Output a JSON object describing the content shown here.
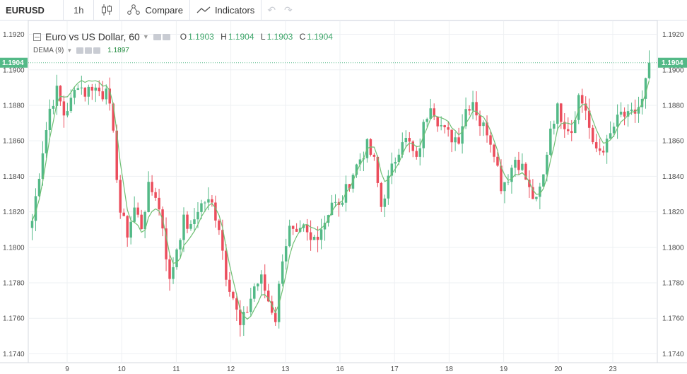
{
  "toolbar": {
    "symbol": "EURUSD",
    "interval": "1h",
    "compare_label": "Compare",
    "indicators_label": "Indicators",
    "undo_icon": "undo-icon",
    "redo_icon": "redo-icon"
  },
  "legend": {
    "title": "Euro vs US Dollar, 60",
    "o_key": "O",
    "o_val": "1.1903",
    "h_key": "H",
    "h_val": "1.1904",
    "l_key": "L",
    "l_val": "1.1903",
    "c_key": "C",
    "c_val": "1.1904",
    "dema_label": "DEMA (9)",
    "dema_value": "1.1897"
  },
  "colors": {
    "up": "#53b987",
    "down": "#eb4d5c",
    "dema_line": "#6fbf73",
    "price_tag": "#53b987",
    "grid": "#eef0f3",
    "axis_text": "#4a4a4a"
  },
  "chart_data": {
    "type": "candlestick",
    "symbol": "EURUSD",
    "interval": "60",
    "last_price": 1.1904,
    "last_price_label": "1.1904",
    "ylim": [
      1.1735,
      1.1925
    ],
    "y_ticks": [
      "1.1920",
      "1.1900",
      "1.1880",
      "1.1860",
      "1.1840",
      "1.1820",
      "1.1800",
      "1.1780",
      "1.1760",
      "1.1740"
    ],
    "x_ticks": [
      "9",
      "10",
      "11",
      "12",
      "13",
      "16",
      "17",
      "18",
      "19",
      "20",
      "23"
    ],
    "path": [
      [
        0,
        1.1815
      ],
      [
        3,
        1.1855
      ],
      [
        5,
        1.1878
      ],
      [
        7,
        1.1888
      ],
      [
        9,
        1.1875
      ],
      [
        11,
        1.1882
      ],
      [
        13,
        1.1893
      ],
      [
        15,
        1.1887
      ],
      [
        17,
        1.1891
      ],
      [
        19,
        1.1888
      ],
      [
        20,
        1.1886
      ],
      [
        21,
        1.1893
      ],
      [
        23,
        1.1862
      ],
      [
        25,
        1.182
      ],
      [
        27,
        1.1808
      ],
      [
        29,
        1.1822
      ],
      [
        31,
        1.1812
      ],
      [
        33,
        1.1833
      ],
      [
        35,
        1.183
      ],
      [
        37,
        1.1812
      ],
      [
        39,
        1.178
      ],
      [
        41,
        1.18
      ],
      [
        43,
        1.1815
      ],
      [
        45,
        1.181
      ],
      [
        47,
        1.1822
      ],
      [
        49,
        1.1826
      ],
      [
        51,
        1.1824
      ],
      [
        53,
        1.1812
      ],
      [
        55,
        1.1785
      ],
      [
        57,
        1.1772
      ],
      [
        59,
        1.1755
      ],
      [
        61,
        1.1765
      ],
      [
        63,
        1.1778
      ],
      [
        65,
        1.1782
      ],
      [
        67,
        1.177
      ],
      [
        69,
        1.176
      ],
      [
        71,
        1.1795
      ],
      [
        73,
        1.181
      ],
      [
        75,
        1.1805
      ],
      [
        77,
        1.181
      ],
      [
        79,
        1.1803
      ],
      [
        81,
        1.1808
      ],
      [
        83,
        1.1815
      ],
      [
        85,
        1.1826
      ],
      [
        87,
        1.1822
      ],
      [
        89,
        1.1832
      ],
      [
        91,
        1.1842
      ],
      [
        93,
        1.185
      ],
      [
        95,
        1.1857
      ],
      [
        97,
        1.1848
      ],
      [
        99,
        1.1823
      ],
      [
        101,
        1.1838
      ],
      [
        103,
        1.185
      ],
      [
        105,
        1.1862
      ],
      [
        107,
        1.1858
      ],
      [
        109,
        1.1848
      ],
      [
        111,
        1.1868
      ],
      [
        113,
        1.1882
      ],
      [
        115,
        1.1872
      ],
      [
        117,
        1.1865
      ],
      [
        119,
        1.1862
      ],
      [
        121,
        1.1862
      ],
      [
        123,
        1.1878
      ],
      [
        125,
        1.1883
      ],
      [
        127,
        1.187
      ],
      [
        129,
        1.1866
      ],
      [
        131,
        1.1855
      ],
      [
        133,
        1.1835
      ],
      [
        135,
        1.184
      ],
      [
        137,
        1.185
      ],
      [
        139,
        1.1845
      ],
      [
        141,
        1.1832
      ],
      [
        143,
        1.1825
      ],
      [
        145,
        1.184
      ],
      [
        147,
        1.1868
      ],
      [
        149,
        1.1878
      ],
      [
        151,
        1.187
      ],
      [
        153,
        1.1866
      ],
      [
        155,
        1.1885
      ],
      [
        157,
        1.1878
      ],
      [
        159,
        1.1856
      ],
      [
        161,
        1.1855
      ],
      [
        163,
        1.1858
      ],
      [
        165,
        1.1868
      ],
      [
        167,
        1.1875
      ],
      [
        169,
        1.1873
      ],
      [
        171,
        1.1876
      ],
      [
        173,
        1.1882
      ],
      [
        175,
        1.1904
      ]
    ]
  }
}
